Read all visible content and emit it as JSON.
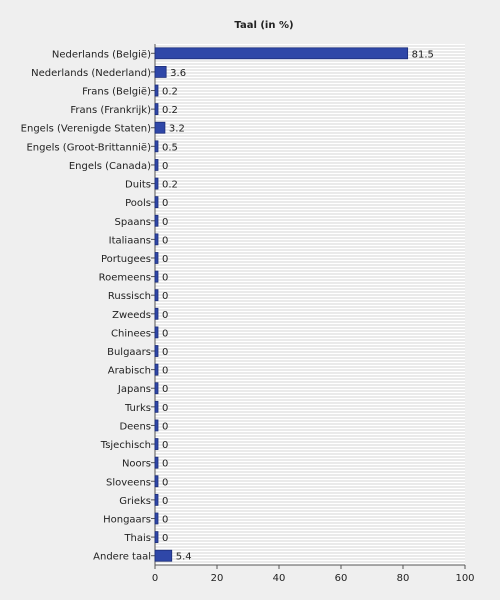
{
  "chart_data": {
    "type": "bar",
    "orientation": "horizontal",
    "title": "Taal (in %)",
    "xlabel": "",
    "ylabel": "",
    "xlim": [
      0,
      100
    ],
    "xticks": [
      0,
      20,
      40,
      60,
      80,
      100
    ],
    "grid": true,
    "categories": [
      "Nederlands (België)",
      "Nederlands (Nederland)",
      "Frans (België)",
      "Frans (Frankrijk)",
      "Engels (Verenigde Staten)",
      "Engels (Groot-Brittannië)",
      "Engels (Canada)",
      "Duits",
      "Pools",
      "Spaans",
      "Italiaans",
      "Portugees",
      "Roemeens",
      "Russisch",
      "Zweeds",
      "Chinees",
      "Bulgaars",
      "Arabisch",
      "Japans",
      "Turks",
      "Deens",
      "Tsjechisch",
      "Noors",
      "Sloveens",
      "Grieks",
      "Hongaars",
      "Thais",
      "Andere taal"
    ],
    "values": [
      81.5,
      3.6,
      0.2,
      0.2,
      3.2,
      0.5,
      0,
      0.2,
      0,
      0,
      0,
      0,
      0,
      0,
      0,
      0,
      0,
      0,
      0,
      0,
      0,
      0,
      0,
      0,
      0,
      0,
      0,
      5.4
    ],
    "value_labels": [
      "81.5",
      "3.6",
      "0.2",
      "0.2",
      "3.2",
      "0.5",
      "0",
      "0.2",
      "0",
      "0",
      "0",
      "0",
      "0",
      "0",
      "0",
      "0",
      "0",
      "0",
      "0",
      "0",
      "0",
      "0",
      "0",
      "0",
      "0",
      "0",
      "0",
      "5.4"
    ],
    "colors": {
      "bar": "#2f47a8",
      "bar_edge": "#1c2d78",
      "plot_bg": "#ffffff",
      "grid": "#d6d6d6",
      "page_bg": "#efefef"
    }
  }
}
